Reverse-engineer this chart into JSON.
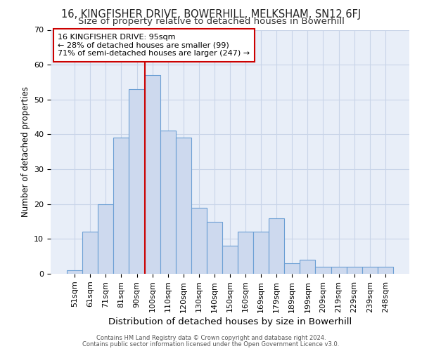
{
  "title": "16, KINGFISHER DRIVE, BOWERHILL, MELKSHAM, SN12 6FJ",
  "subtitle": "Size of property relative to detached houses in Bowerhill",
  "xlabel": "Distribution of detached houses by size in Bowerhill",
  "ylabel": "Number of detached properties",
  "bar_labels": [
    "51sqm",
    "61sqm",
    "71sqm",
    "81sqm",
    "90sqm",
    "100sqm",
    "110sqm",
    "120sqm",
    "130sqm",
    "140sqm",
    "150sqm",
    "160sqm",
    "169sqm",
    "179sqm",
    "189sqm",
    "199sqm",
    "209sqm",
    "219sqm",
    "229sqm",
    "239sqm",
    "248sqm"
  ],
  "bar_values": [
    1,
    12,
    20,
    39,
    53,
    57,
    41,
    39,
    19,
    15,
    8,
    12,
    12,
    16,
    3,
    4,
    2,
    2,
    2,
    2,
    2
  ],
  "bar_color": "#cdd9ee",
  "bar_edgecolor": "#6b9fd4",
  "red_line_index": 4.5,
  "red_line_color": "#cc0000",
  "annotation_line1": "16 KINGFISHER DRIVE: 95sqm",
  "annotation_line2": "← 28% of detached houses are smaller (99)",
  "annotation_line3": "71% of semi-detached houses are larger (247) →",
  "annotation_box_color": "#ffffff",
  "annotation_box_edgecolor": "#cc0000",
  "ylim": [
    0,
    70
  ],
  "yticks": [
    0,
    10,
    20,
    30,
    40,
    50,
    60,
    70
  ],
  "title_fontsize": 10.5,
  "subtitle_fontsize": 9.5,
  "xlabel_fontsize": 9.5,
  "ylabel_fontsize": 8.5,
  "tick_fontsize": 8,
  "annot_fontsize": 8,
  "footer1": "Contains HM Land Registry data © Crown copyright and database right 2024.",
  "footer2": "Contains public sector information licensed under the Open Government Licence v3.0.",
  "bg_color": "#ffffff",
  "axes_bg_color": "#e8eef8",
  "grid_color": "#c8d4e8"
}
